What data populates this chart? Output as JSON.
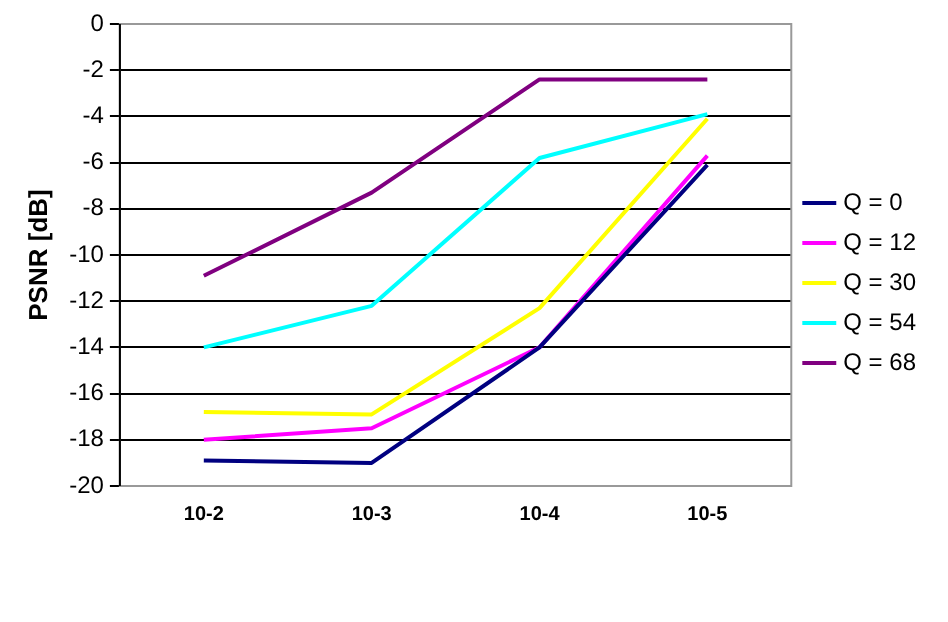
{
  "chart_data": {
    "type": "line",
    "ylabel": "PSNR [dB]",
    "categories": [
      "10-2",
      "10-3",
      "10-4",
      "10-5"
    ],
    "series": [
      {
        "name": "Q = 0",
        "color": "#000080",
        "values": [
          -18.9,
          -19.0,
          -14.0,
          -6.1
        ]
      },
      {
        "name": "Q = 12",
        "color": "#ff00ff",
        "values": [
          -18.0,
          -17.5,
          -14.0,
          -5.7
        ]
      },
      {
        "name": "Q = 30",
        "color": "#ffff00",
        "values": [
          -16.8,
          -16.9,
          -12.3,
          -4.1
        ]
      },
      {
        "name": "Q = 54",
        "color": "#00ffff",
        "values": [
          -14.0,
          -12.2,
          -5.8,
          -3.9
        ]
      },
      {
        "name": "Q = 68",
        "color": "#800080",
        "values": [
          -10.9,
          -7.3,
          -2.4,
          -2.4
        ]
      }
    ],
    "ylim": [
      -20,
      0
    ],
    "yticks": [
      -20,
      -18,
      -16,
      -14,
      -12,
      -10,
      -8,
      -6,
      -4,
      -2,
      0
    ],
    "grid": "y",
    "legend": "right",
    "marker": "none",
    "line_style": "solid"
  }
}
